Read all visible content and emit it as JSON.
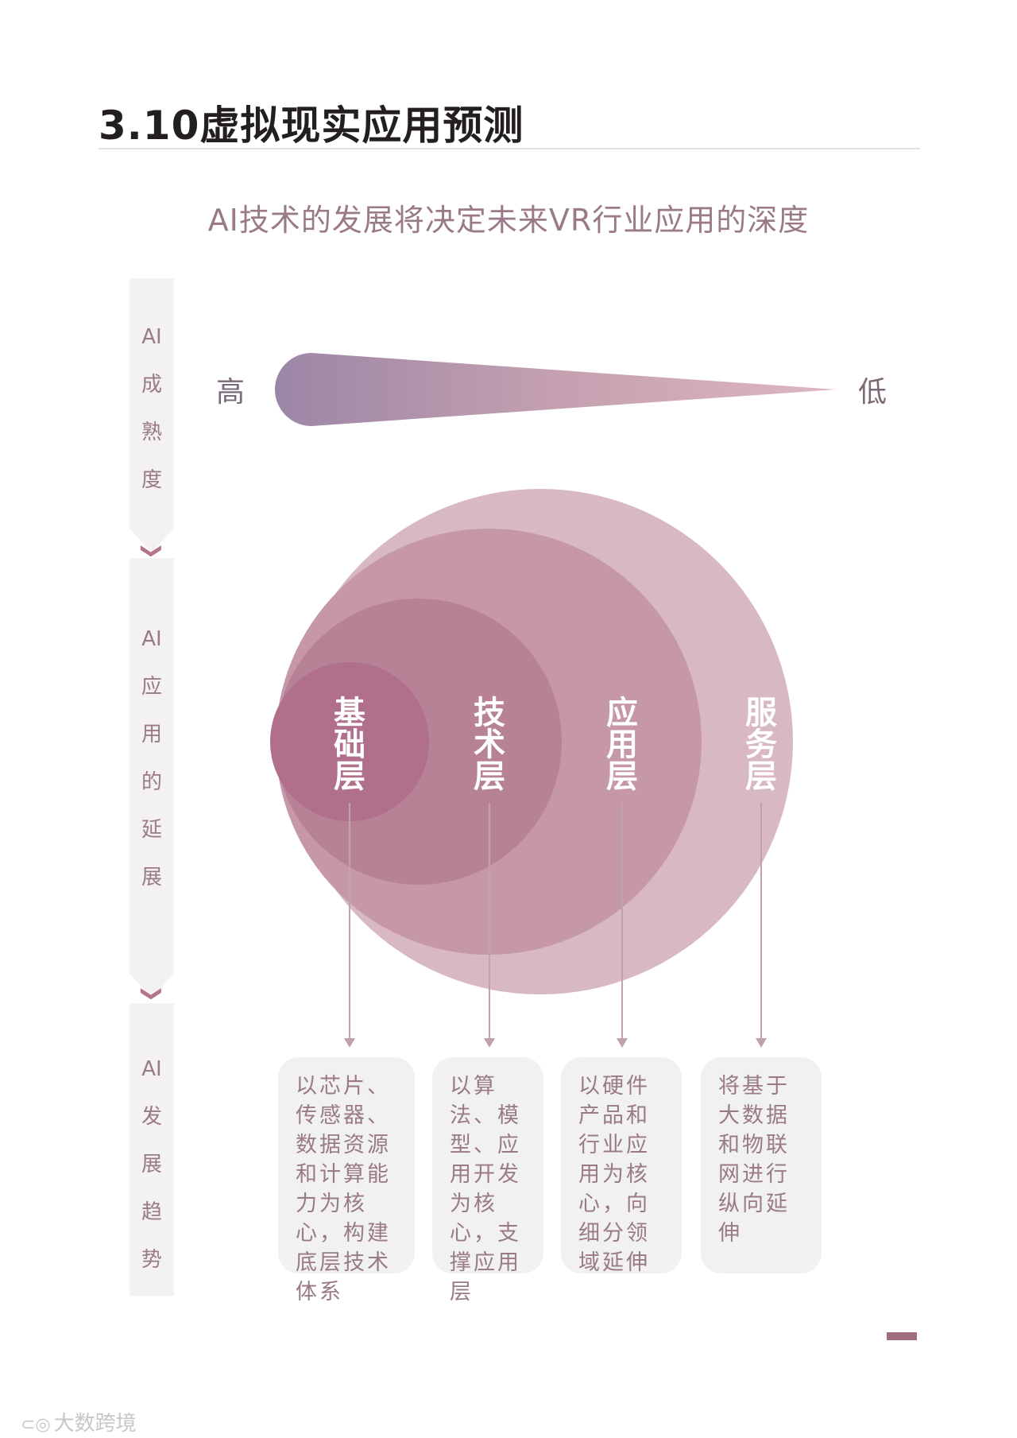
{
  "page": {
    "title": "3.10虚拟现实应用预测",
    "subtitle": "AI技术的发展将决定未来VR行业应用的深度"
  },
  "side_panel": {
    "sections": [
      {
        "chars": [
          "AI",
          "成",
          "熟",
          "度"
        ]
      },
      {
        "chars": [
          "AI",
          "应",
          "用",
          "的",
          "延",
          "展"
        ]
      },
      {
        "chars": [
          "AI",
          "发",
          "展",
          "趋",
          "势"
        ]
      }
    ],
    "arrow_glyph": "❯"
  },
  "maturity": {
    "high_label": "高",
    "low_label": "低",
    "colors": {
      "start": "#9c86a6",
      "mid": "#c4a0b0",
      "end": "#ddb6bf"
    }
  },
  "layers": [
    {
      "name": "基础层",
      "chars": [
        "基",
        "础",
        "层"
      ],
      "color": "#b06f8a",
      "description": "以芯片、传感器、数据资源和计算能力为核心，构建底层技术体系"
    },
    {
      "name": "技术层",
      "chars": [
        "技",
        "术",
        "层"
      ],
      "color": "#b78196",
      "description": "以算法、模型、应用开发为核心，支撑应用层"
    },
    {
      "name": "应用层",
      "chars": [
        "应",
        "用",
        "层"
      ],
      "color": "#c597a9",
      "description": "以硬件产品和行业应用为核心，向细分领域延伸"
    },
    {
      "name": "服务层",
      "chars": [
        "服",
        "务",
        "层"
      ],
      "color": "#d8b8c5",
      "description": "将基于大数据和物联网进行纵向延伸"
    }
  ],
  "footer": {
    "watermark": "大数跨境"
  }
}
